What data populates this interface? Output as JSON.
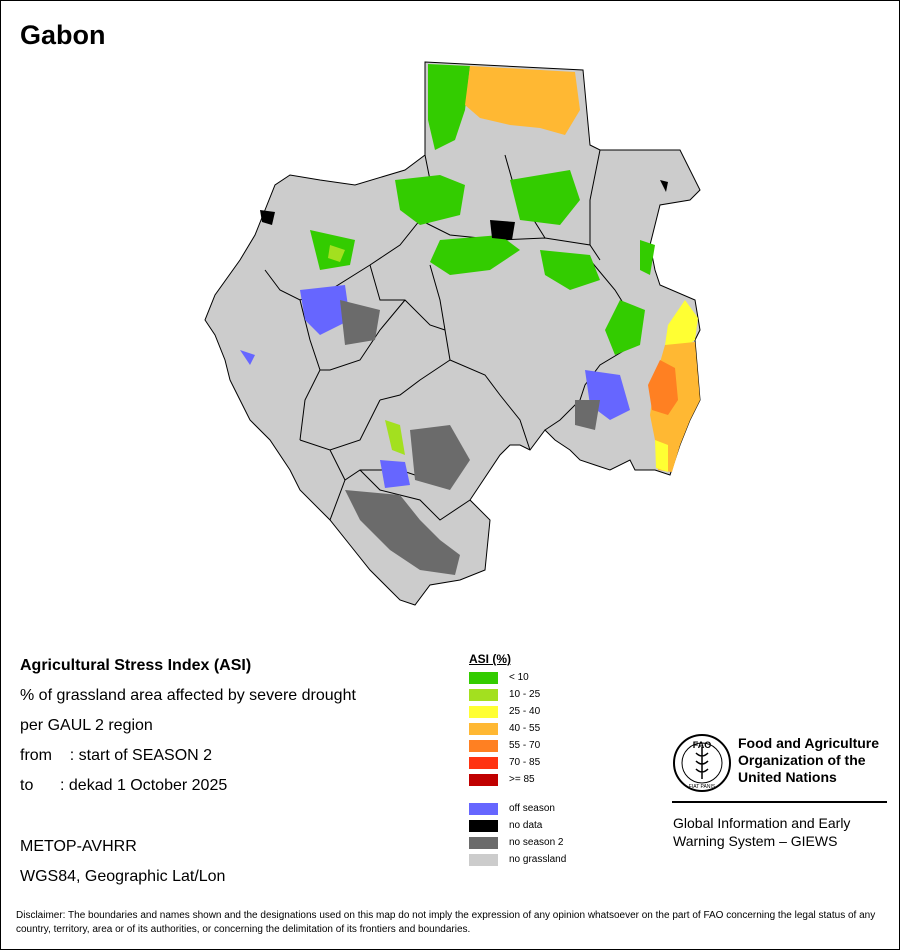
{
  "title": "Gabon",
  "info": {
    "heading": "Agricultural Stress Index (ASI)",
    "line1": "% of grassland area affected by severe drought",
    "line2": "per GAUL 2 region",
    "from": "from    : start of SEASON 2",
    "to": "to      : dekad 1 October 2025",
    "sensor": "METOP-AVHRR",
    "projection": "WGS84, Geographic Lat/Lon"
  },
  "legend": {
    "title": "ASI (%)",
    "classes": [
      {
        "label": "< 10",
        "color": "#33cc00"
      },
      {
        "label": "10 - 25",
        "color": "#a3e01f"
      },
      {
        "label": "25 - 40",
        "color": "#ffff33"
      },
      {
        "label": "40 - 55",
        "color": "#ffb833"
      },
      {
        "label": "55 - 70",
        "color": "#ff8022"
      },
      {
        "label": "70 - 85",
        "color": "#ff3311"
      },
      {
        "label": ">= 85",
        "color": "#c00000"
      }
    ],
    "other": [
      {
        "label": "off season",
        "color": "#6666ff"
      },
      {
        "label": "no data",
        "color": "#000000"
      },
      {
        "label": "no season 2",
        "color": "#6b6b6b"
      },
      {
        "label": "no grassland",
        "color": "#cccccc"
      }
    ]
  },
  "logo": {
    "org_line1": "Food and Agriculture",
    "org_line2": "Organization of the",
    "org_line3": "United Nations",
    "giews_line1": "Global Information and Early",
    "giews_line2": "Warning System – GIEWS",
    "seal_text": "FAO",
    "seal_motto": "FIAT PANIS"
  },
  "disclaimer": "Disclaimer: The boundaries and names shown and the designations used on this map do not imply the expression of any opinion whatsoever on the part of FAO concerning the legal status of any country, territory, area or of its authorities, or concerning the delimitation of its frontiers and boundaries."
}
